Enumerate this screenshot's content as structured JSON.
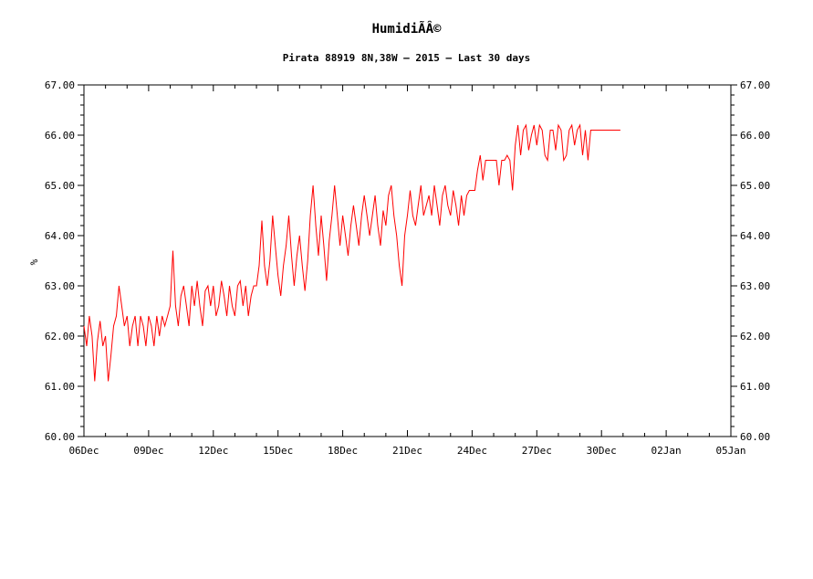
{
  "page": {
    "background": "#ffffff"
  },
  "chart_data": {
    "type": "line",
    "title": "HumidiÃÂ©",
    "subtitle": "Pirata 88919 8N,38W – 2015 – Last 30 days",
    "ylabel": "%",
    "line_color": "#ff0000",
    "axis_color": "#000000",
    "grid": false,
    "legend": "none",
    "ylim": [
      60,
      67
    ],
    "y_major_step": 1.0,
    "y_minor_step": 0.2,
    "y_tick_labels": [
      "60.00",
      "61.00",
      "62.00",
      "63.00",
      "64.00",
      "65.00",
      "66.00",
      "67.00"
    ],
    "y_labels_on_right": true,
    "x_range_days": [
      0,
      30
    ],
    "x_major_step_days": 3,
    "x_minor_step_days": 1,
    "x_tick_labels": [
      "06Dec",
      "09Dec",
      "12Dec",
      "15Dec",
      "18Dec",
      "21Dec",
      "24Dec",
      "27Dec",
      "30Dec",
      "02Jan",
      "05Jan"
    ],
    "start_day": 0,
    "sample_interval_days": 0.125,
    "values": [
      62.2,
      61.8,
      62.4,
      62.0,
      61.1,
      61.9,
      62.3,
      61.8,
      62.0,
      61.1,
      61.6,
      62.2,
      62.4,
      63.0,
      62.6,
      62.2,
      62.4,
      61.8,
      62.2,
      62.4,
      61.8,
      62.4,
      62.2,
      61.8,
      62.4,
      62.2,
      61.8,
      62.4,
      62.0,
      62.4,
      62.2,
      62.4,
      62.6,
      63.7,
      62.6,
      62.2,
      62.8,
      63.0,
      62.6,
      62.2,
      63.0,
      62.6,
      63.1,
      62.6,
      62.2,
      62.9,
      63.0,
      62.6,
      63.0,
      62.4,
      62.6,
      63.1,
      62.8,
      62.4,
      63.0,
      62.6,
      62.4,
      63.0,
      63.1,
      62.6,
      63.0,
      62.4,
      62.8,
      63.0,
      63.0,
      63.4,
      64.3,
      63.4,
      63.0,
      63.5,
      64.4,
      63.8,
      63.2,
      62.8,
      63.4,
      63.8,
      64.4,
      63.6,
      63.0,
      63.6,
      64.0,
      63.4,
      62.9,
      63.5,
      64.4,
      65.0,
      64.2,
      63.6,
      64.4,
      63.8,
      63.1,
      63.9,
      64.4,
      65.0,
      64.4,
      63.8,
      64.4,
      64.0,
      63.6,
      64.2,
      64.6,
      64.2,
      63.8,
      64.4,
      64.8,
      64.4,
      64.0,
      64.4,
      64.8,
      64.2,
      63.8,
      64.5,
      64.2,
      64.8,
      65.0,
      64.4,
      64.0,
      63.4,
      63.0,
      64.0,
      64.4,
      64.9,
      64.4,
      64.2,
      64.6,
      65.0,
      64.4,
      64.6,
      64.8,
      64.4,
      65.0,
      64.6,
      64.2,
      64.8,
      65.0,
      64.6,
      64.4,
      64.9,
      64.6,
      64.2,
      64.8,
      64.4,
      64.8,
      64.9,
      64.9,
      64.9,
      65.3,
      65.6,
      65.1,
      65.5,
      65.5,
      65.5,
      65.5,
      65.5,
      65.0,
      65.5,
      65.5,
      65.6,
      65.5,
      64.9,
      65.8,
      66.2,
      65.6,
      66.1,
      66.2,
      65.7,
      66.0,
      66.2,
      65.8,
      66.2,
      66.1,
      65.6,
      65.5,
      66.1,
      66.1,
      65.7,
      66.2,
      66.1,
      65.5,
      65.6,
      66.1,
      66.2,
      65.8,
      66.1,
      66.2,
      65.6,
      66.1,
      65.5,
      66.1,
      66.1,
      66.1,
      66.1,
      66.1,
      66.1,
      66.1,
      66.1,
      66.1,
      66.1,
      66.1,
      66.1
    ]
  }
}
